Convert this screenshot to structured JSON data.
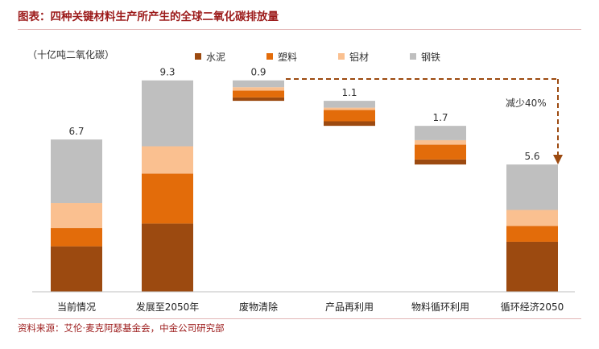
{
  "title": "图表：四种关键材料生产所产生的全球二氧化碳排放量",
  "source": "资料来源：艾伦·麦克阿瑟基金会，中金公司研究部",
  "chart_data": {
    "type": "bar",
    "unit_label": "（十亿吨二氧化碳）",
    "categories": [
      "当前情况",
      "发展至2050年",
      "废物清除",
      "产品再利用",
      "物料循环利用",
      "循环经济2050"
    ],
    "totals": [
      "6.7",
      "9.3",
      "0.9",
      "1.1",
      "1.7",
      "5.6"
    ],
    "series": [
      {
        "name": "水泥",
        "color": "#9c4a10",
        "values": [
          2.0,
          3.0,
          0.15,
          0.2,
          0.22,
          2.2
        ]
      },
      {
        "name": "塑料",
        "color": "#e36c0a",
        "values": [
          0.8,
          2.2,
          0.3,
          0.5,
          0.65,
          0.7
        ]
      },
      {
        "name": "铝材",
        "color": "#fac090",
        "values": [
          1.1,
          1.2,
          0.15,
          0.1,
          0.2,
          0.7
        ]
      },
      {
        "name": "钢铁",
        "color": "#bfbfbf",
        "values": [
          2.8,
          2.9,
          0.3,
          0.3,
          0.63,
          2.0
        ]
      }
    ],
    "waterfall_bases": [
      0,
      0,
      8.4,
      7.3,
      5.6,
      0
    ],
    "annotation": "减少40%",
    "ylim": [
      0,
      10
    ],
    "legend_position": "top"
  }
}
